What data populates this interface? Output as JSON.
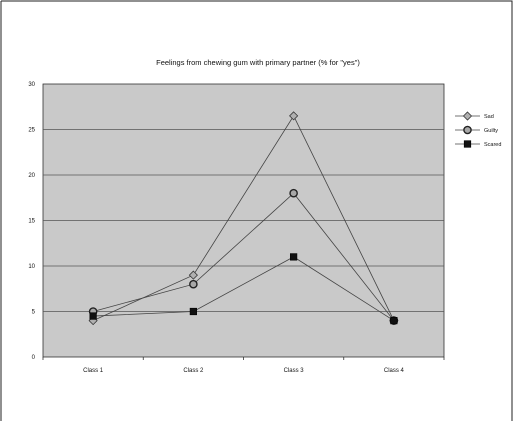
{
  "colors": {
    "plot_background": "#c9c9c9",
    "gridline": "#555555",
    "series_line": "#444444",
    "sad_marker": "#b0b0b0",
    "guilty_marker": "#a8a8a8",
    "scared_marker": "#111111"
  },
  "chart_data": {
    "type": "line",
    "title": "Feelings from chewing gum with primary partner (% for \"yes\")",
    "xlabel": "",
    "ylabel": "",
    "categories": [
      "Class 1",
      "Class 2",
      "Class 3",
      "Class 4"
    ],
    "ylim": [
      0,
      30
    ],
    "yticks": [
      "0",
      "5",
      "10",
      "15",
      "20",
      "25",
      "30"
    ],
    "grid": true,
    "legend_position": "right",
    "series": [
      {
        "name": "Sad",
        "marker": "diamond",
        "values": [
          4,
          9,
          26.5,
          4
        ]
      },
      {
        "name": "Guilty",
        "marker": "circle",
        "values": [
          5,
          8,
          18,
          4
        ]
      },
      {
        "name": "Scared",
        "marker": "square",
        "values": [
          4.5,
          5,
          11,
          4
        ]
      }
    ]
  }
}
